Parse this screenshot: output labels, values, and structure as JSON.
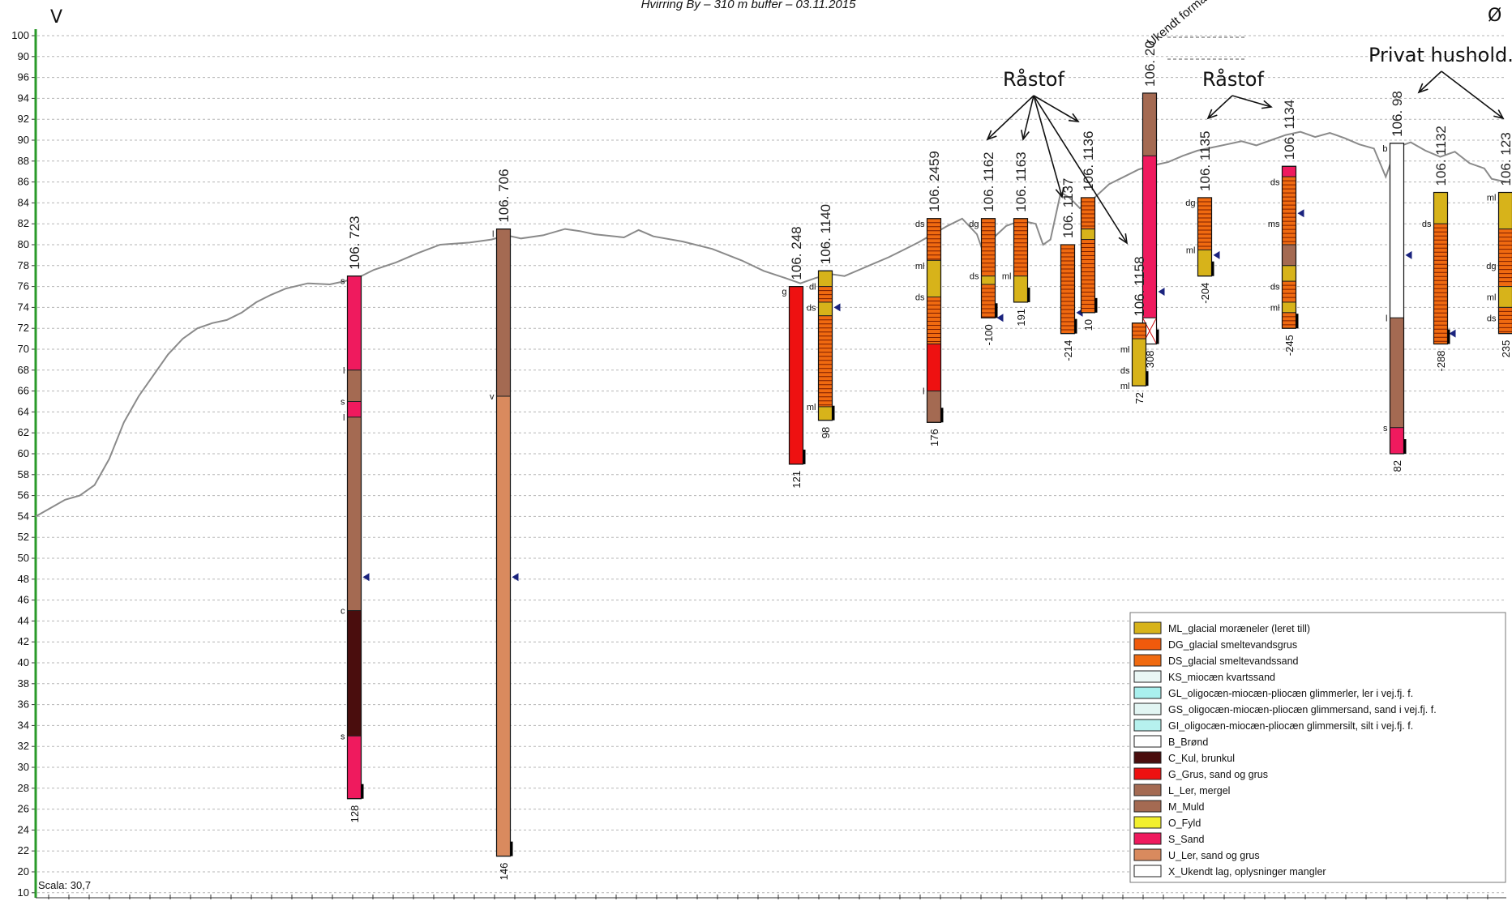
{
  "header": {
    "title": "Hvirring By – 310 m buffer – 03.11.2015",
    "left_dir": "V",
    "right_dir": "Ø"
  },
  "axis": {
    "ticks": [
      "100",
      "90",
      "96",
      "94",
      "92",
      "90",
      "88",
      "86",
      "84",
      "82",
      "80",
      "78",
      "76",
      "74",
      "72",
      "70",
      "68",
      "66",
      "64",
      "62",
      "60",
      "58",
      "56",
      "54",
      "52",
      "50",
      "48",
      "46",
      "44",
      "42",
      "40",
      "38",
      "36",
      "34",
      "32",
      "30",
      "28",
      "26",
      "24",
      "22",
      "20",
      "10"
    ],
    "scale_label": "Scala: 30,7"
  },
  "terrain": [
    [
      0.0,
      54.0
    ],
    [
      1.0,
      54.8
    ],
    [
      2.0,
      55.6
    ],
    [
      3.0,
      56.0
    ],
    [
      4.0,
      57.0
    ],
    [
      5.0,
      59.5
    ],
    [
      6.0,
      63.0
    ],
    [
      7.0,
      65.5
    ],
    [
      8.0,
      67.5
    ],
    [
      9.0,
      69.5
    ],
    [
      10.0,
      71.0
    ],
    [
      11.0,
      72.0
    ],
    [
      12.0,
      72.5
    ],
    [
      13.0,
      72.8
    ],
    [
      14.0,
      73.5
    ],
    [
      15.0,
      74.5
    ],
    [
      16.0,
      75.2
    ],
    [
      17.0,
      75.8
    ],
    [
      18.5,
      76.3
    ],
    [
      20.0,
      76.2
    ],
    [
      21.0,
      76.5
    ],
    [
      22.0,
      76.9
    ],
    [
      23.0,
      77.6
    ],
    [
      24.5,
      78.3
    ],
    [
      26.0,
      79.2
    ],
    [
      27.5,
      80.0
    ],
    [
      29.5,
      80.2
    ],
    [
      31.0,
      80.5
    ],
    [
      32.0,
      80.9
    ],
    [
      33.0,
      80.6
    ],
    [
      34.5,
      80.9
    ],
    [
      36.0,
      81.5
    ],
    [
      37.0,
      81.3
    ],
    [
      38.0,
      81.0
    ],
    [
      40.0,
      80.7
    ],
    [
      41.0,
      81.4
    ],
    [
      42.0,
      80.8
    ],
    [
      44.0,
      80.3
    ],
    [
      46.0,
      79.6
    ],
    [
      48.0,
      78.5
    ],
    [
      49.5,
      77.5
    ],
    [
      51.0,
      76.8
    ],
    [
      52.0,
      76.3
    ],
    [
      53.0,
      76.8
    ],
    [
      54.0,
      77.2
    ],
    [
      55.0,
      77.0
    ],
    [
      56.0,
      77.6
    ],
    [
      57.0,
      78.2
    ],
    [
      58.0,
      78.8
    ],
    [
      59.0,
      79.5
    ],
    [
      60.0,
      80.2
    ],
    [
      61.0,
      81.0
    ],
    [
      62.0,
      81.8
    ],
    [
      63.0,
      82.5
    ],
    [
      64.0,
      81.0
    ],
    [
      64.5,
      79.0
    ],
    [
      65.0,
      80.5
    ],
    [
      66.0,
      81.8
    ],
    [
      67.0,
      82.3
    ],
    [
      68.0,
      82.0
    ],
    [
      68.5,
      80.0
    ],
    [
      69.0,
      80.5
    ],
    [
      69.7,
      85.0
    ],
    [
      70.3,
      84.5
    ],
    [
      71.0,
      83.5
    ],
    [
      72.0,
      84.5
    ],
    [
      73.0,
      85.8
    ],
    [
      74.0,
      86.5
    ],
    [
      75.0,
      87.2
    ],
    [
      76.0,
      87.6
    ],
    [
      77.0,
      87.9
    ],
    [
      78.0,
      88.5
    ],
    [
      79.0,
      89.0
    ],
    [
      80.0,
      89.3
    ],
    [
      81.0,
      89.6
    ],
    [
      82.0,
      89.9
    ],
    [
      83.0,
      89.5
    ],
    [
      84.0,
      90.0
    ],
    [
      85.0,
      90.5
    ],
    [
      86.0,
      90.8
    ],
    [
      87.0,
      90.3
    ],
    [
      88.0,
      90.7
    ],
    [
      89.0,
      90.2
    ],
    [
      90.0,
      89.6
    ],
    [
      91.0,
      89.2
    ],
    [
      91.8,
      86.5
    ],
    [
      92.5,
      89.3
    ],
    [
      93.5,
      89.8
    ],
    [
      94.5,
      89.0
    ],
    [
      95.5,
      88.4
    ],
    [
      96.5,
      88.9
    ],
    [
      97.5,
      87.8
    ],
    [
      98.5,
      87.3
    ],
    [
      99.0,
      86.3
    ],
    [
      100.0,
      86.0
    ]
  ],
  "boreholes": [
    {
      "id": "106. 723",
      "bottom": "128",
      "top_label": "s",
      "layers": [
        {
          "m": "S",
          "top": 77,
          "bot": 68
        },
        {
          "m": "L",
          "top": 68,
          "bot": 65
        },
        {
          "m": "S",
          "top": 65,
          "bot": 63.5
        },
        {
          "m": "L",
          "top": 63.5,
          "bot": 45
        },
        {
          "m": "C",
          "top": 45,
          "bot": 33
        },
        {
          "m": "S",
          "top": 33,
          "bot": 27
        }
      ],
      "side_labels": [
        {
          "t": "l",
          "y": 68
        },
        {
          "t": "s",
          "y": 65
        },
        {
          "t": "l",
          "y": 63.5
        },
        {
          "t": "c",
          "y": 45
        },
        {
          "t": "s",
          "y": 33
        }
      ],
      "water": 48.2
    },
    {
      "id": "106. 706",
      "bottom": "146",
      "top_label": "l",
      "layers": [
        {
          "m": "L",
          "top": 81.5,
          "bot": 65.5
        },
        {
          "m": "U",
          "top": 65.5,
          "bot": 21.5
        }
      ],
      "side_labels": [
        {
          "t": "v",
          "y": 65.5
        }
      ],
      "water": 48.2
    },
    {
      "id": "106. 248",
      "bottom": "121",
      "top_label": "g",
      "layers": [
        {
          "m": "G",
          "top": 76,
          "bot": 59
        }
      ],
      "side_labels": [],
      "water": null
    },
    {
      "id": "106. 1140",
      "bottom": "98",
      "top_label": "",
      "layers": [
        {
          "m": "ML",
          "top": 77.5,
          "bot": 76
        },
        {
          "m": "DS",
          "top": 76,
          "bot": 74.5
        },
        {
          "m": "ML",
          "top": 74.5,
          "bot": 73.2
        },
        {
          "m": "DS",
          "top": 73.2,
          "bot": 64.5
        },
        {
          "m": "ML",
          "top": 64.5,
          "bot": 63.2
        }
      ],
      "side_labels": [
        {
          "t": "dl",
          "y": 76
        },
        {
          "t": "ds",
          "y": 74
        },
        {
          "t": "ml",
          "y": 64.5
        }
      ],
      "water": 74.0
    },
    {
      "id": "106. 2459",
      "bottom": "176",
      "top_label": "",
      "layers": [
        {
          "m": "DS",
          "top": 82.5,
          "bot": 78.5
        },
        {
          "m": "ML",
          "top": 78.5,
          "bot": 75
        },
        {
          "m": "DS",
          "top": 75,
          "bot": 70.5
        },
        {
          "m": "G",
          "top": 70.5,
          "bot": 66
        },
        {
          "m": "L",
          "top": 66,
          "bot": 63
        }
      ],
      "side_labels": [
        {
          "t": "ds",
          "y": 82
        },
        {
          "t": "ml",
          "y": 78
        },
        {
          "t": "ds",
          "y": 75
        },
        {
          "t": "l",
          "y": 66
        }
      ],
      "water": null
    },
    {
      "id": "106. 1162",
      "bottom": "-100",
      "top_label": "dg",
      "layers": [
        {
          "m": "DS",
          "top": 82.5,
          "bot": 77
        },
        {
          "m": "ML",
          "top": 77,
          "bot": 76.2
        },
        {
          "m": "DS",
          "top": 76.2,
          "bot": 73
        }
      ],
      "side_labels": [
        {
          "t": "ds",
          "y": 77
        }
      ],
      "water": 73.0
    },
    {
      "id": "106. 1163",
      "bottom": "191",
      "top_label": "",
      "layers": [
        {
          "m": "DS",
          "top": 82.5,
          "bot": 77
        },
        {
          "m": "ML",
          "top": 77,
          "bot": 74.5
        }
      ],
      "side_labels": [
        {
          "t": "ml",
          "y": 77
        }
      ],
      "water": null
    },
    {
      "id": "106. 1137",
      "bottom": "-214",
      "top_label": "",
      "layers": [
        {
          "m": "DS",
          "top": 80,
          "bot": 71.5
        }
      ],
      "side_labels": [],
      "water": 73.5
    },
    {
      "id": "106. 1136",
      "bottom": "10",
      "top_label": "",
      "layers": [
        {
          "m": "DS",
          "top": 84.5,
          "bot": 81.5
        },
        {
          "m": "ML",
          "top": 81.5,
          "bot": 80.5
        },
        {
          "m": "DS",
          "top": 80.5,
          "bot": 73.5
        }
      ],
      "side_labels": [],
      "water": null
    },
    {
      "id": "106. 20",
      "bottom": "308",
      "top_label": "",
      "layers": [
        {
          "m": "L",
          "top": 94.5,
          "bot": 88.5
        },
        {
          "m": "S",
          "top": 88.5,
          "bot": 73
        },
        {
          "m": "X",
          "top": 73,
          "bot": 70.5
        }
      ],
      "side_labels": [],
      "water": 75.5
    },
    {
      "id": "106. 1158",
      "bottom": "72",
      "top_label": "",
      "layers": [
        {
          "m": "DS",
          "top": 72.5,
          "bot": 71
        },
        {
          "m": "ML",
          "top": 71,
          "bot": 66.5
        }
      ],
      "side_labels": [
        {
          "t": "ml",
          "y": 70
        },
        {
          "t": "ds",
          "y": 68
        },
        {
          "t": "ml",
          "y": 66.5
        }
      ],
      "water": null
    },
    {
      "id": "106. 1135",
      "bottom": "-204",
      "top_label": "dg",
      "layers": [
        {
          "m": "DS",
          "top": 84.5,
          "bot": 79.5
        },
        {
          "m": "ML",
          "top": 79.5,
          "bot": 77
        }
      ],
      "side_labels": [
        {
          "t": "ml",
          "y": 79.5
        }
      ],
      "water": 79.0
    },
    {
      "id": "106. 1134",
      "bottom": "-245",
      "top_label": "",
      "layers": [
        {
          "m": "S",
          "top": 87.5,
          "bot": 86.5
        },
        {
          "m": "DS",
          "top": 86.5,
          "bot": 80
        },
        {
          "m": "L",
          "top": 80,
          "bot": 78
        },
        {
          "m": "ML",
          "top": 78,
          "bot": 76.5
        },
        {
          "m": "DS",
          "top": 76.5,
          "bot": 74.5
        },
        {
          "m": "ML",
          "top": 74.5,
          "bot": 73.5
        },
        {
          "m": "DS",
          "top": 73.5,
          "bot": 72
        }
      ],
      "side_labels": [
        {
          "t": "ds",
          "y": 86
        },
        {
          "t": "ms",
          "y": 82
        },
        {
          "t": "ds",
          "y": 76
        },
        {
          "t": "ml",
          "y": 74
        }
      ],
      "water": 83.0
    },
    {
      "id": "106. 98",
      "bottom": "82",
      "top_label": "b",
      "layers": [
        {
          "m": "B",
          "top": 89.7,
          "bot": 73
        },
        {
          "m": "L",
          "top": 73,
          "bot": 62.5
        },
        {
          "m": "S",
          "top": 62.5,
          "bot": 60
        }
      ],
      "side_labels": [
        {
          "t": "l",
          "y": 73
        },
        {
          "t": "s",
          "y": 62.5
        }
      ],
      "water": 79.0
    },
    {
      "id": "106. 1132",
      "bottom": "-288",
      "top_label": "",
      "layers": [
        {
          "m": "ML",
          "top": 85,
          "bot": 82
        },
        {
          "m": "DS",
          "top": 82,
          "bot": 70.5
        }
      ],
      "side_labels": [
        {
          "t": "ds",
          "y": 82
        }
      ],
      "water": 71.5
    },
    {
      "id": "106. 123",
      "bottom": "235",
      "top_label": "ml",
      "layers": [
        {
          "m": "ML",
          "top": 85,
          "bot": 81.5
        },
        {
          "m": "DS",
          "top": 81.5,
          "bot": 76
        },
        {
          "m": "ML",
          "top": 76,
          "bot": 74
        },
        {
          "m": "DS",
          "top": 74,
          "bot": 71.5
        }
      ],
      "side_labels": [
        {
          "t": "dg",
          "y": 78
        },
        {
          "t": "ml",
          "y": 75
        },
        {
          "t": "ds",
          "y": 73
        }
      ],
      "water": null
    }
  ],
  "annotations": {
    "raastof_1": "Råstof",
    "raastof_2": "Råstof",
    "privat": "Privat hushold.",
    "ukendt": "Ukendt formål"
  },
  "legend": [
    {
      "label": "ML_glacial moræneler (leret till)",
      "color": "#d7b31a"
    },
    {
      "label": "DG_glacial smeltevandsgrus",
      "color": "#f05a0c"
    },
    {
      "label": "DS_glacial smeltevandssand",
      "color": "#f06a10"
    },
    {
      "label": "KS_miocæn kvartssand",
      "color": "#eaf7f5"
    },
    {
      "label": "GL_oligocæn-miocæn-pliocæn glimmerler, ler i vej.fj. f.",
      "color": "#a9f0ee"
    },
    {
      "label": "GS_oligocæn-miocæn-pliocæn glimmersand, sand i vej.fj. f.",
      "color": "#e2f5f3"
    },
    {
      "label": "GI_oligocæn-miocæn-pliocæn glimmersilt, silt i vej.fj. f.",
      "color": "#b6f1ee"
    },
    {
      "label": "B_Brønd",
      "color": "#ffffff"
    },
    {
      "label": "C_Kul, brunkul",
      "color": "#4a0d0d"
    },
    {
      "label": "G_Grus, sand og grus",
      "color": "#ee1111"
    },
    {
      "label": "L_Ler, mergel",
      "color": "#a46a52"
    },
    {
      "label": "M_Muld",
      "color": "#a46a52"
    },
    {
      "label": "O_Fyld",
      "color": "#f2ef2e"
    },
    {
      "label": "S_Sand",
      "color": "#ef1a5e"
    },
    {
      "label": "U_Ler, sand og grus",
      "color": "#d98a5e"
    },
    {
      "label": "X_Ukendt lag, oplysninger mangler",
      "color": "#ffffff"
    }
  ]
}
